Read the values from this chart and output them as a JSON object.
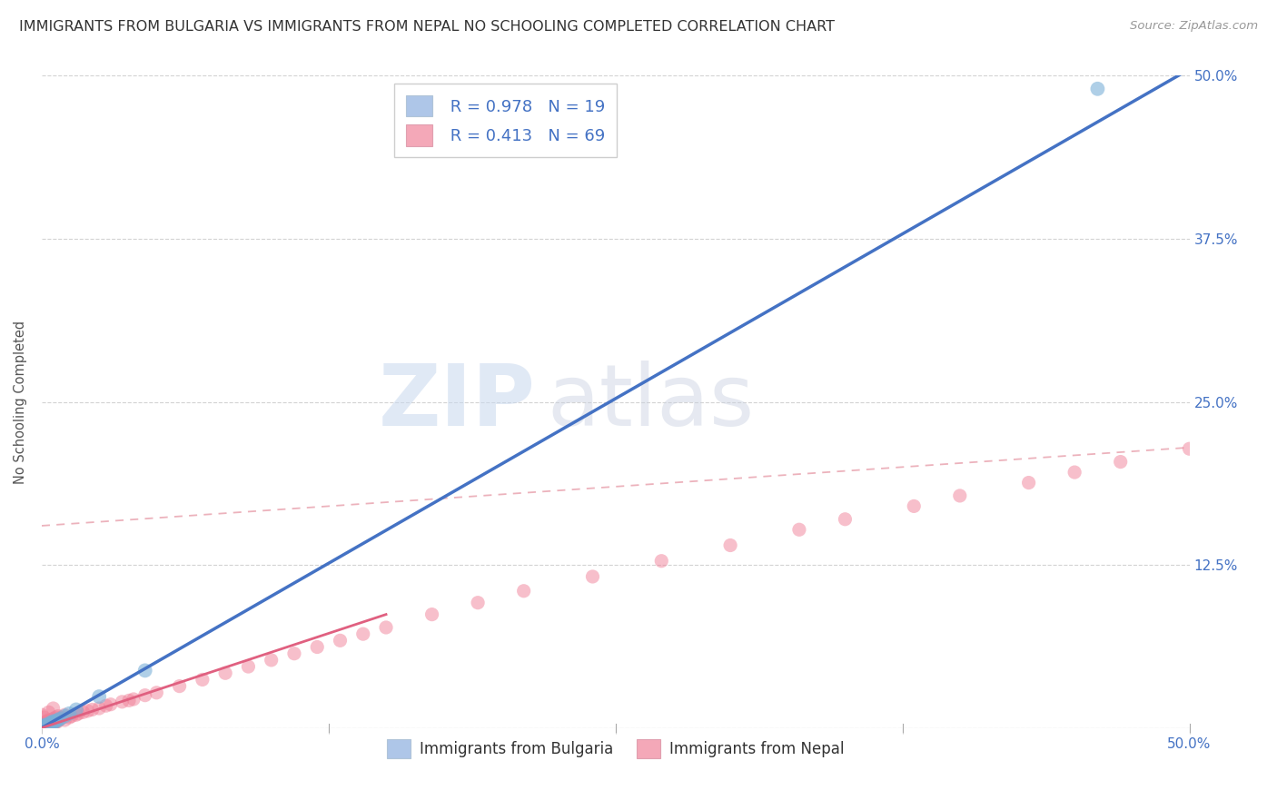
{
  "title": "IMMIGRANTS FROM BULGARIA VS IMMIGRANTS FROM NEPAL NO SCHOOLING COMPLETED CORRELATION CHART",
  "source": "Source: ZipAtlas.com",
  "ylabel": "No Schooling Completed",
  "xticklabels": [
    "0.0%",
    "",
    "",
    "",
    "50.0%"
  ],
  "yticklabels_right": [
    "",
    "12.5%",
    "25.0%",
    "37.5%",
    "50.0%"
  ],
  "xtick_positions": [
    0,
    0.125,
    0.25,
    0.375,
    0.5
  ],
  "ytick_positions": [
    0,
    0.125,
    0.25,
    0.375,
    0.5
  ],
  "xlim": [
    0,
    0.5
  ],
  "ylim": [
    0,
    0.5
  ],
  "legend_R1": "R = 0.978",
  "legend_N1": "N = 19",
  "legend_R2": "R = 0.413",
  "legend_N2": "N = 69",
  "color_bulgaria_patch": "#aec6e8",
  "color_nepal_patch": "#f4a8b8",
  "scatter_color_bulgaria": "#7ab0d8",
  "scatter_color_nepal": "#f08098",
  "line_color_bulgaria": "#4472c4",
  "line_color_nepal": "#e06080",
  "line_dashed_color": "#e08090",
  "watermark": "ZIPatlas",
  "title_color": "#333333",
  "title_fontsize": 11.5,
  "tick_label_color": "#4472c4",
  "legend_label_bulgaria": "Immigrants from Bulgaria",
  "legend_label_nepal": "Immigrants from Nepal",
  "background_color": "#ffffff",
  "grid_color": "#c8c8c8",
  "bulgaria_line": [
    0.0,
    0.0,
    0.5,
    0.505
  ],
  "nepal_solid_line": [
    0.0,
    0.0,
    0.15,
    0.087
  ],
  "nepal_dashed_line": [
    0.0,
    0.155,
    0.5,
    0.215
  ],
  "bulgaria_scatter_x": [
    0.0,
    0.0,
    0.001,
    0.001,
    0.002,
    0.003,
    0.003,
    0.004,
    0.005,
    0.005,
    0.006,
    0.007,
    0.008,
    0.01,
    0.012,
    0.015,
    0.025,
    0.045,
    0.46
  ],
  "bulgaria_scatter_y": [
    0.0,
    0.001,
    0.001,
    0.002,
    0.002,
    0.002,
    0.003,
    0.004,
    0.004,
    0.005,
    0.005,
    0.006,
    0.007,
    0.009,
    0.011,
    0.014,
    0.024,
    0.044,
    0.49
  ],
  "nepal_scatter_x": [
    0.0,
    0.0,
    0.0,
    0.0,
    0.001,
    0.001,
    0.001,
    0.001,
    0.002,
    0.002,
    0.002,
    0.003,
    0.003,
    0.003,
    0.004,
    0.004,
    0.005,
    0.005,
    0.006,
    0.006,
    0.007,
    0.007,
    0.008,
    0.009,
    0.01,
    0.01,
    0.012,
    0.013,
    0.015,
    0.016,
    0.018,
    0.02,
    0.022,
    0.025,
    0.028,
    0.03,
    0.035,
    0.038,
    0.04,
    0.045,
    0.05,
    0.06,
    0.07,
    0.08,
    0.09,
    0.1,
    0.11,
    0.12,
    0.13,
    0.14,
    0.15,
    0.17,
    0.19,
    0.21,
    0.24,
    0.27,
    0.3,
    0.33,
    0.35,
    0.38,
    0.4,
    0.43,
    0.45,
    0.47,
    0.5,
    0.0,
    0.001,
    0.003,
    0.005
  ],
  "nepal_scatter_y": [
    0.0,
    0.0,
    0.001,
    0.002,
    0.001,
    0.002,
    0.003,
    0.004,
    0.001,
    0.003,
    0.005,
    0.002,
    0.003,
    0.006,
    0.003,
    0.006,
    0.003,
    0.007,
    0.004,
    0.008,
    0.005,
    0.009,
    0.007,
    0.008,
    0.006,
    0.01,
    0.008,
    0.009,
    0.01,
    0.011,
    0.012,
    0.013,
    0.014,
    0.015,
    0.017,
    0.018,
    0.02,
    0.021,
    0.022,
    0.025,
    0.027,
    0.032,
    0.037,
    0.042,
    0.047,
    0.052,
    0.057,
    0.062,
    0.067,
    0.072,
    0.077,
    0.087,
    0.096,
    0.105,
    0.116,
    0.128,
    0.14,
    0.152,
    0.16,
    0.17,
    0.178,
    0.188,
    0.196,
    0.204,
    0.214,
    0.01,
    0.008,
    0.012,
    0.015
  ]
}
